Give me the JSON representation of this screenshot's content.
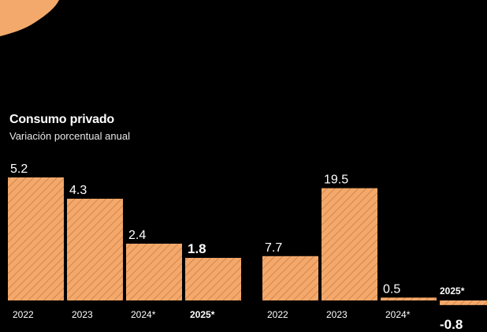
{
  "colors": {
    "background": "#000000",
    "bar_fill": "#f2a96b",
    "bar_hatch": "#d9844a",
    "accent_blob": "#f2a96b",
    "text": "#ffffff"
  },
  "chart_data": [
    {
      "type": "bar",
      "title": "Consumo privado",
      "subtitle": "Variación porcentual anual",
      "categories": [
        "2022",
        "2023",
        "2024*",
        "2025*"
      ],
      "values": [
        5.2,
        4.3,
        2.4,
        1.8
      ],
      "value_labels": [
        "5.2",
        "4.3",
        "2.4",
        "1.8"
      ],
      "bold_category": "2025*",
      "ylim": [
        -1,
        6
      ]
    },
    {
      "type": "bar",
      "title": "",
      "subtitle": "",
      "categories": [
        "2022",
        "2023",
        "2024*",
        "2025*"
      ],
      "values": [
        7.7,
        19.5,
        0.5,
        -0.8
      ],
      "value_labels": [
        "7.7",
        "19.5",
        "0.5",
        "-0.8"
      ],
      "bold_category": "2025*",
      "ylim": [
        -1,
        20
      ]
    }
  ]
}
